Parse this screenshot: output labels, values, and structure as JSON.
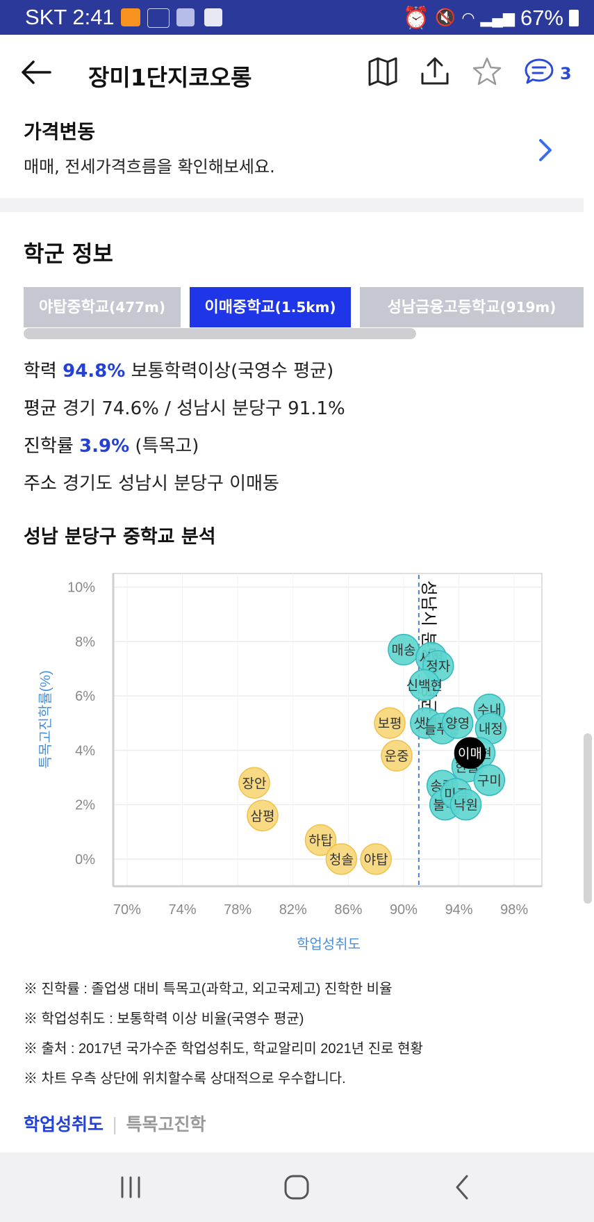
{
  "status_bar": {
    "carrier_time": "SKT 2:41",
    "battery": "67%"
  },
  "header": {
    "title": "장미1단지코오롱",
    "comment_count": "3"
  },
  "price_section": {
    "title": "가격변동",
    "desc": "매매, 전세가격흐름을 확인해보세요."
  },
  "school": {
    "title": "학군 정보",
    "tabs": [
      {
        "name": "야탑중학교",
        "dist": "(477m)",
        "active": false
      },
      {
        "name": "이매중학교",
        "dist": "(1.5km)",
        "active": true
      },
      {
        "name": "성남금융고등학교",
        "dist": "(919m)",
        "active": false
      }
    ],
    "line1": {
      "label": "학력",
      "value": "94.8%",
      "rest": "보통학력이상(국영수 평균)"
    },
    "line2": {
      "label": "평균",
      "rest": "경기 74.6% / 성남시 분당구 91.1%"
    },
    "line3": {
      "label": "진학률",
      "value": "3.9%",
      "rest": "(특목고)"
    },
    "line4": {
      "label": "주소",
      "rest": "경기도 성남시 분당구 이매동"
    },
    "analysis_title": "성남 분당구 중학교 분석"
  },
  "chart_data": {
    "type": "scatter",
    "xlabel": "학업성취도",
    "ylabel": "특목고진학률(%)",
    "xlim": [
      69,
      100
    ],
    "ylim": [
      -1,
      10.5
    ],
    "x_ticks": [
      "70%",
      "74%",
      "78%",
      "82%",
      "86%",
      "90%",
      "94%",
      "98%"
    ],
    "y_ticks": [
      "0%",
      "2%",
      "4%",
      "6%",
      "8%",
      "10%"
    ],
    "reference_line": {
      "x": 91.1,
      "label": "성남시 분당구 평균"
    },
    "colors": {
      "below": "#f8d77a",
      "above": "#5fd6cf",
      "highlight": "#000000"
    },
    "points": [
      {
        "name": "장안",
        "x": 79.2,
        "y": 2.8,
        "group": "below"
      },
      {
        "name": "삼평",
        "x": 79.8,
        "y": 1.6,
        "group": "below"
      },
      {
        "name": "하탑",
        "x": 84.0,
        "y": 0.7,
        "group": "below"
      },
      {
        "name": "청솔",
        "x": 85.5,
        "y": 0.0,
        "group": "below"
      },
      {
        "name": "야탑",
        "x": 88.0,
        "y": 0.0,
        "group": "below"
      },
      {
        "name": "보평",
        "x": 89.0,
        "y": 5.0,
        "group": "below"
      },
      {
        "name": "운중",
        "x": 89.5,
        "y": 3.8,
        "group": "below"
      },
      {
        "name": "매송",
        "x": 90.0,
        "y": 7.7,
        "group": "above"
      },
      {
        "name": "서현",
        "x": 92.0,
        "y": 7.4,
        "group": "above"
      },
      {
        "name": "정자",
        "x": 92.5,
        "y": 7.1,
        "group": "above"
      },
      {
        "name": "신백현",
        "x": 91.5,
        "y": 6.4,
        "group": "above"
      },
      {
        "name": "샛별",
        "x": 91.6,
        "y": 5.0,
        "group": "above"
      },
      {
        "name": "늘푸른",
        "x": 92.8,
        "y": 4.8,
        "group": "above"
      },
      {
        "name": "양영",
        "x": 93.9,
        "y": 5.0,
        "group": "above"
      },
      {
        "name": "수내",
        "x": 96.2,
        "y": 5.5,
        "group": "above"
      },
      {
        "name": "내정",
        "x": 96.3,
        "y": 4.8,
        "group": "above"
      },
      {
        "name": "백현",
        "x": 95.5,
        "y": 3.9,
        "group": "above"
      },
      {
        "name": "송림",
        "x": 92.8,
        "y": 2.7,
        "group": "above"
      },
      {
        "name": "한솔",
        "x": 94.6,
        "y": 3.4,
        "group": "above"
      },
      {
        "name": "구미",
        "x": 96.2,
        "y": 2.9,
        "group": "above"
      },
      {
        "name": "불곡",
        "x": 93.0,
        "y": 2.0,
        "group": "above"
      },
      {
        "name": "미금",
        "x": 93.8,
        "y": 2.4,
        "group": "above"
      },
      {
        "name": "낙원",
        "x": 94.5,
        "y": 2.0,
        "group": "above"
      },
      {
        "name": "이매",
        "x": 94.8,
        "y": 3.9,
        "group": "highlight"
      }
    ]
  },
  "notes": [
    "※ 진학률 : 졸업생 대비 특목고(과학고, 외고국제고) 진학한 비율",
    "※ 학업성취도 : 보통학력 이상 비율(국영수 평균)",
    "※ 출처 : 2017년 국가수준 학업성취도, 학교알리미 2021년 진로 현황",
    "※ 차트 우측 상단에 위치할수록 상대적으로 우수합니다."
  ],
  "bottom_tabs": {
    "active": "학업성취도",
    "inactive": "특목고진학"
  }
}
